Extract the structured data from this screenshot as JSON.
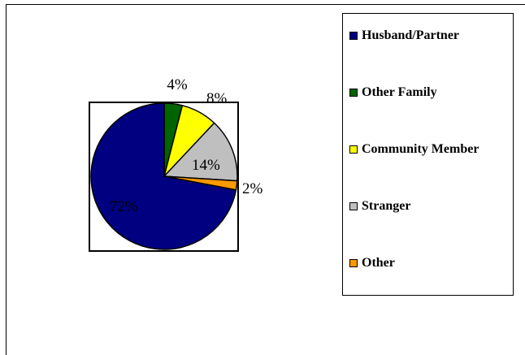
{
  "chart_data": {
    "type": "pie",
    "categories": [
      "Husband/Partner",
      "Other Family",
      "Community Member",
      "Stranger",
      "Other"
    ],
    "values": [
      72,
      4,
      8,
      14,
      2
    ],
    "value_labels": [
      "72%",
      "4%",
      "8%",
      "14%",
      "2%"
    ],
    "colors": [
      "#000080",
      "#006400",
      "#ffff00",
      "#bfbfbf",
      "#ff9900"
    ],
    "legend_position": "right"
  }
}
